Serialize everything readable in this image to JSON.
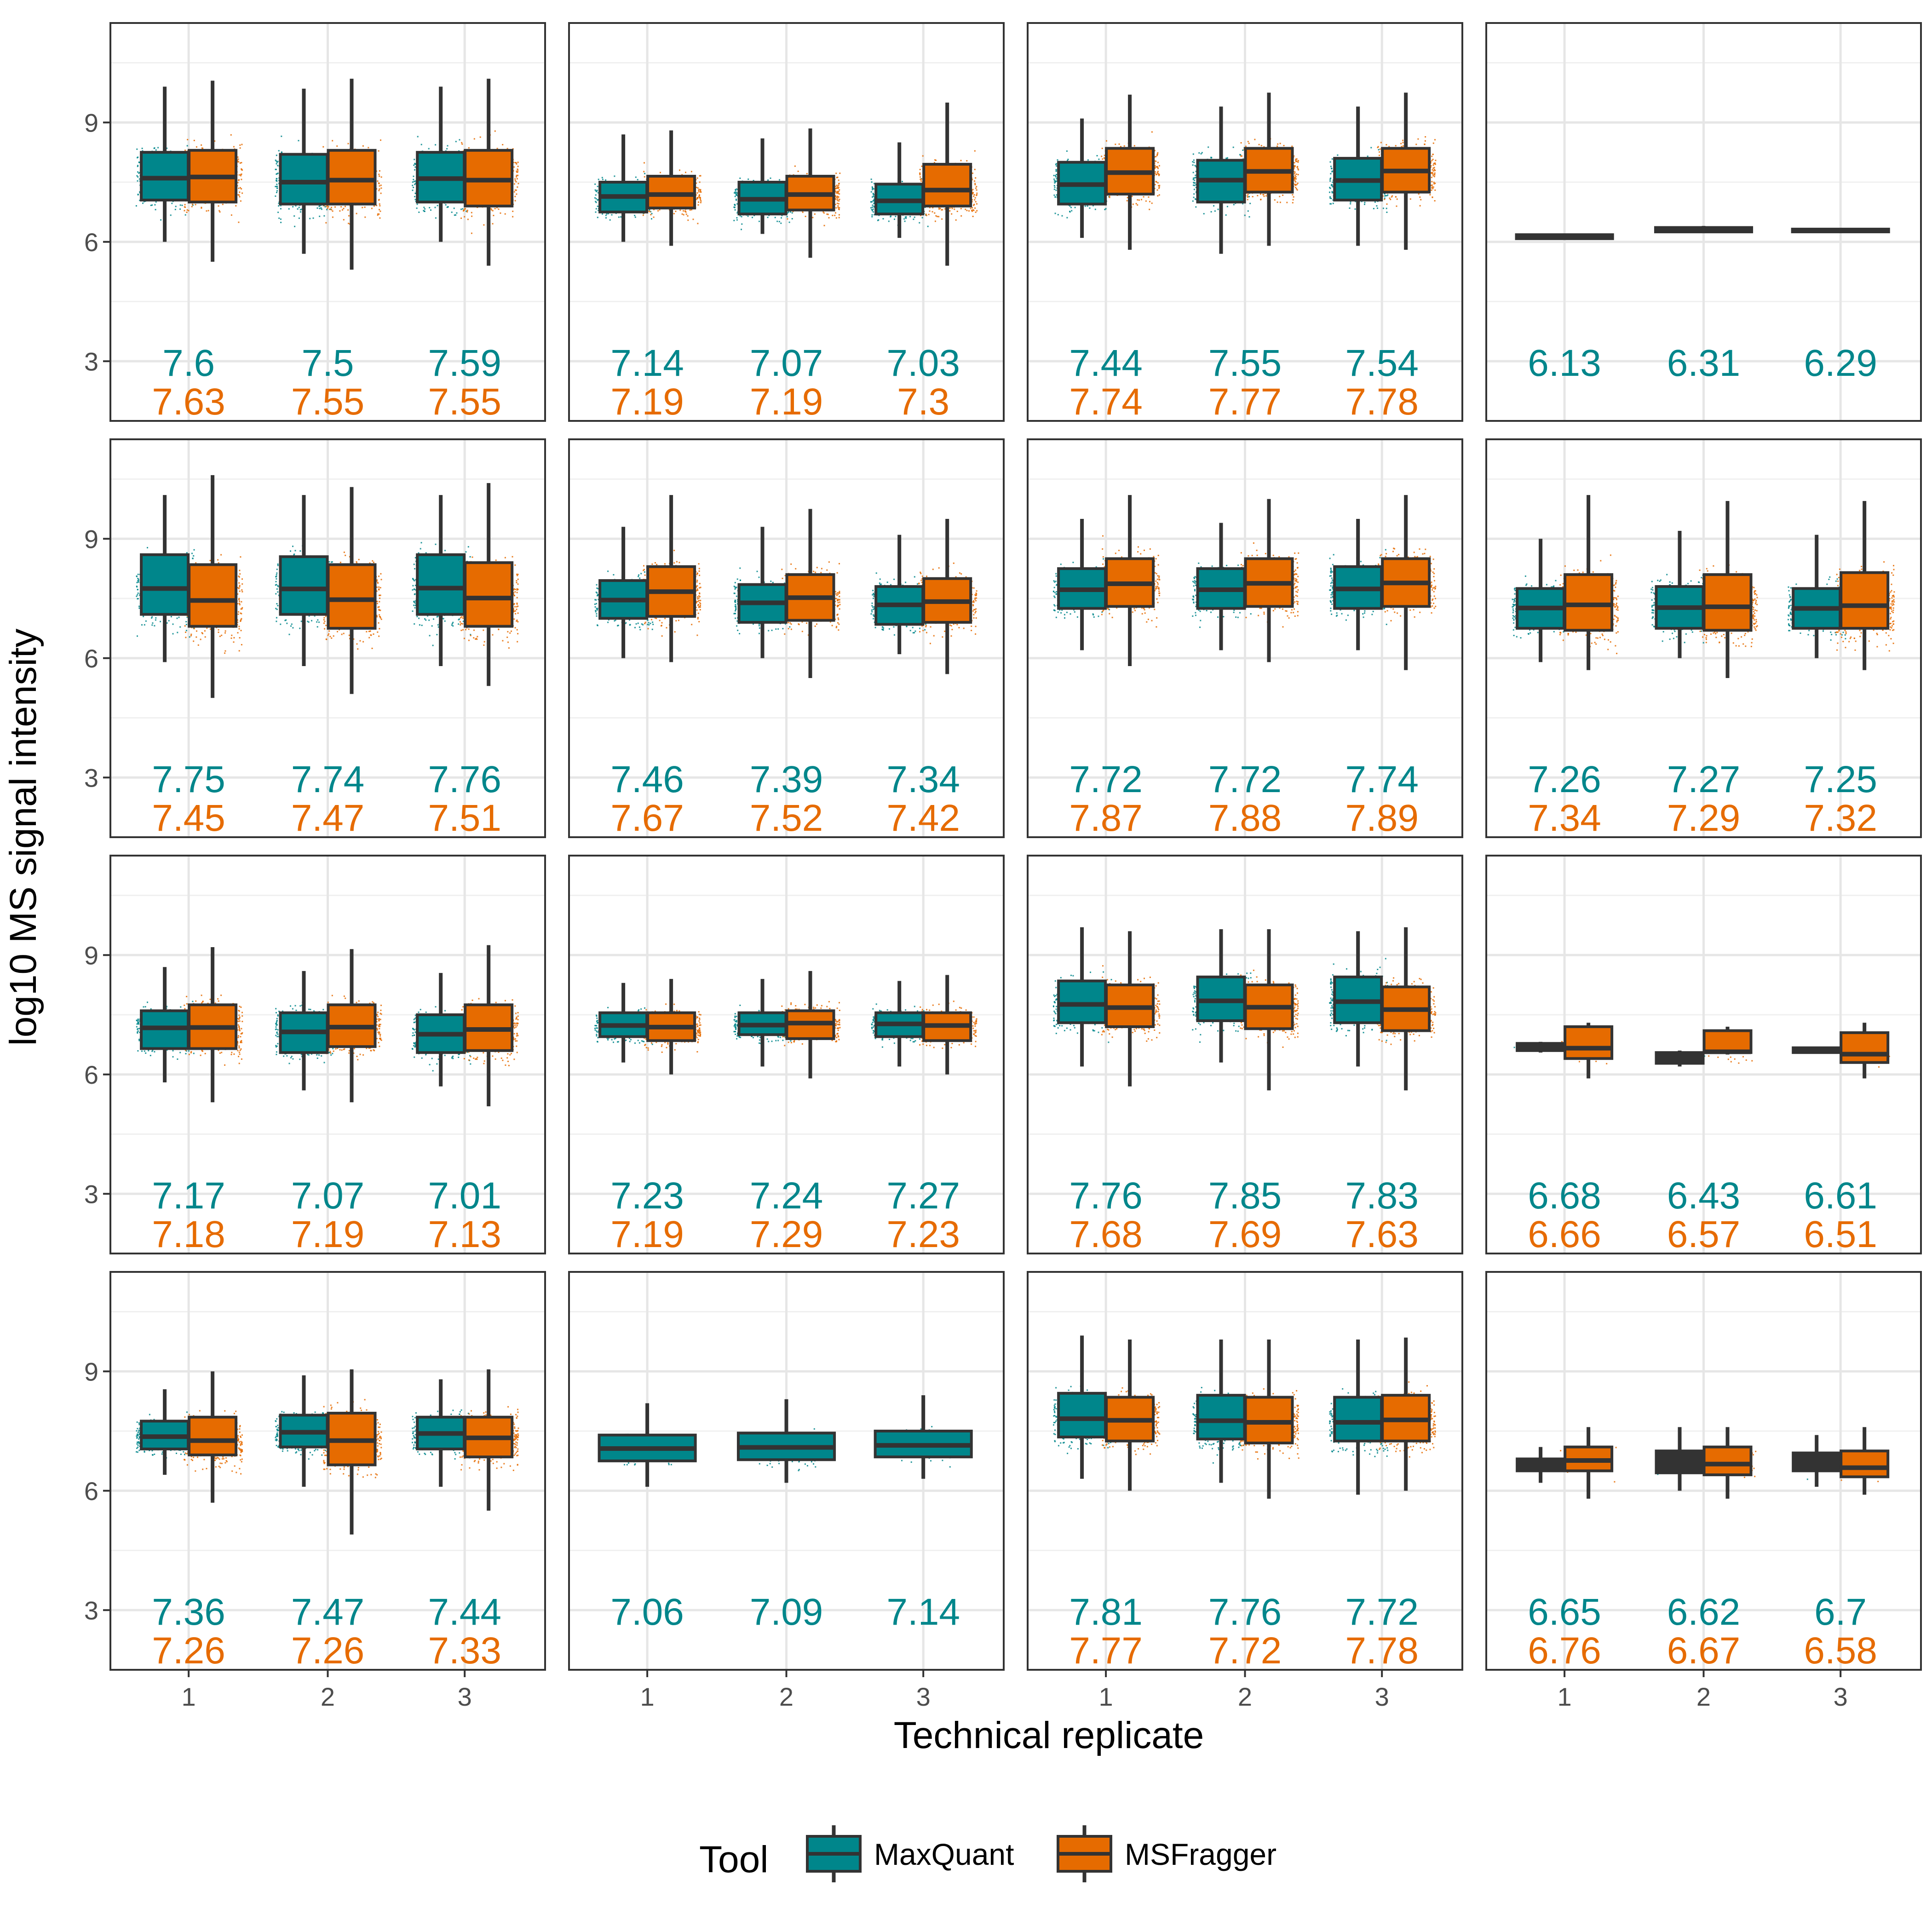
{
  "chart_data": {
    "type": "boxplot",
    "xlabel": "Technical replicate",
    "ylabel": "log10 MS signal intensity",
    "categories": [
      "1",
      "2",
      "3"
    ],
    "ylim": [
      1.5,
      11.5
    ],
    "yticks": [
      3,
      6,
      9
    ],
    "grid": true,
    "legend": {
      "title": "Tool",
      "placement": "bottom",
      "items": [
        {
          "name": "MaxQuant",
          "color": "#00868B"
        },
        {
          "name": "MSFragger",
          "color": "#E66B00"
        }
      ]
    },
    "series_colors": {
      "MaxQuant": "#00868B",
      "MSFragger": "#E66B00"
    },
    "panels": [
      {
        "mq": [
          {
            "min": 6.0,
            "q1": 7.05,
            "med": 7.6,
            "q3": 8.25,
            "max": 9.9
          },
          {
            "min": 5.7,
            "q1": 6.95,
            "med": 7.5,
            "q3": 8.2,
            "max": 9.85
          },
          {
            "min": 6.0,
            "q1": 7.0,
            "med": 7.59,
            "q3": 8.25,
            "max": 9.9
          }
        ],
        "msf": [
          {
            "min": 5.5,
            "q1": 7.0,
            "med": 7.63,
            "q3": 8.3,
            "max": 10.05
          },
          {
            "min": 5.3,
            "q1": 6.95,
            "med": 7.55,
            "q3": 8.3,
            "max": 10.1
          },
          {
            "min": 5.4,
            "q1": 6.9,
            "med": 7.55,
            "q3": 8.3,
            "max": 10.1
          }
        ],
        "mq_labels": [
          "7.6",
          "7.5",
          "7.59"
        ],
        "msf_labels": [
          "7.63",
          "7.55",
          "7.55"
        ],
        "mq_only_box": false
      },
      {
        "mq": [
          {
            "min": 6.0,
            "q1": 6.75,
            "med": 7.14,
            "q3": 7.5,
            "max": 8.7
          },
          {
            "min": 6.2,
            "q1": 6.7,
            "med": 7.07,
            "q3": 7.5,
            "max": 8.6
          },
          {
            "min": 6.1,
            "q1": 6.7,
            "med": 7.03,
            "q3": 7.45,
            "max": 8.5
          }
        ],
        "msf": [
          {
            "min": 5.9,
            "q1": 6.85,
            "med": 7.19,
            "q3": 7.65,
            "max": 8.8
          },
          {
            "min": 5.6,
            "q1": 6.8,
            "med": 7.19,
            "q3": 7.65,
            "max": 8.85
          },
          {
            "min": 5.4,
            "q1": 6.9,
            "med": 7.3,
            "q3": 7.95,
            "max": 9.5
          }
        ],
        "mq_labels": [
          "7.14",
          "7.07",
          "7.03"
        ],
        "msf_labels": [
          "7.19",
          "7.19",
          "7.3"
        ],
        "mq_only_box": false
      },
      {
        "mq": [
          {
            "min": 6.1,
            "q1": 6.95,
            "med": 7.44,
            "q3": 8.0,
            "max": 9.1
          },
          {
            "min": 5.7,
            "q1": 7.0,
            "med": 7.55,
            "q3": 8.05,
            "max": 9.4
          },
          {
            "min": 5.9,
            "q1": 7.05,
            "med": 7.54,
            "q3": 8.1,
            "max": 9.4
          }
        ],
        "msf": [
          {
            "min": 5.8,
            "q1": 7.2,
            "med": 7.74,
            "q3": 8.35,
            "max": 9.7
          },
          {
            "min": 5.9,
            "q1": 7.25,
            "med": 7.77,
            "q3": 8.35,
            "max": 9.75
          },
          {
            "min": 5.8,
            "q1": 7.25,
            "med": 7.78,
            "q3": 8.35,
            "max": 9.75
          }
        ],
        "mq_labels": [
          "7.44",
          "7.55",
          "7.54"
        ],
        "msf_labels": [
          "7.74",
          "7.77",
          "7.78"
        ],
        "mq_only_box": false
      },
      {
        "mq": [
          {
            "min": 6.05,
            "q1": 6.08,
            "med": 6.13,
            "q3": 6.18,
            "max": 6.2
          },
          {
            "min": 6.22,
            "q1": 6.25,
            "med": 6.31,
            "q3": 6.36,
            "max": 6.4
          },
          {
            "min": 6.24,
            "q1": 6.26,
            "med": 6.29,
            "q3": 6.32,
            "max": 6.34
          }
        ],
        "msf": [],
        "mq_labels": [
          "6.13",
          "6.31",
          "6.29"
        ],
        "msf_labels": [],
        "mq_only_box": true,
        "dark_box": true
      },
      {
        "mq": [
          {
            "min": 5.9,
            "q1": 7.1,
            "med": 7.75,
            "q3": 8.6,
            "max": 10.1
          },
          {
            "min": 5.8,
            "q1": 7.1,
            "med": 7.74,
            "q3": 8.55,
            "max": 10.1
          },
          {
            "min": 5.8,
            "q1": 7.1,
            "med": 7.76,
            "q3": 8.6,
            "max": 10.1
          }
        ],
        "msf": [
          {
            "min": 5.0,
            "q1": 6.8,
            "med": 7.45,
            "q3": 8.35,
            "max": 10.6
          },
          {
            "min": 5.1,
            "q1": 6.75,
            "med": 7.47,
            "q3": 8.35,
            "max": 10.3
          },
          {
            "min": 5.3,
            "q1": 6.8,
            "med": 7.51,
            "q3": 8.4,
            "max": 10.4
          }
        ],
        "mq_labels": [
          "7.75",
          "7.74",
          "7.76"
        ],
        "msf_labels": [
          "7.45",
          "7.47",
          "7.51"
        ],
        "mq_only_box": false
      },
      {
        "mq": [
          {
            "min": 6.0,
            "q1": 7.0,
            "med": 7.46,
            "q3": 7.95,
            "max": 9.3
          },
          {
            "min": 6.0,
            "q1": 6.9,
            "med": 7.39,
            "q3": 7.85,
            "max": 9.3
          },
          {
            "min": 6.1,
            "q1": 6.85,
            "med": 7.34,
            "q3": 7.8,
            "max": 9.1
          }
        ],
        "msf": [
          {
            "min": 5.9,
            "q1": 7.05,
            "med": 7.67,
            "q3": 8.3,
            "max": 10.1
          },
          {
            "min": 5.5,
            "q1": 6.95,
            "med": 7.52,
            "q3": 8.1,
            "max": 9.75
          },
          {
            "min": 5.6,
            "q1": 6.9,
            "med": 7.42,
            "q3": 8.0,
            "max": 9.5
          }
        ],
        "mq_labels": [
          "7.46",
          "7.39",
          "7.34"
        ],
        "msf_labels": [
          "7.67",
          "7.52",
          "7.42"
        ],
        "mq_only_box": false
      },
      {
        "mq": [
          {
            "min": 6.2,
            "q1": 7.25,
            "med": 7.72,
            "q3": 8.25,
            "max": 9.5
          },
          {
            "min": 6.2,
            "q1": 7.25,
            "med": 7.72,
            "q3": 8.25,
            "max": 9.4
          },
          {
            "min": 6.2,
            "q1": 7.25,
            "med": 7.74,
            "q3": 8.3,
            "max": 9.5
          }
        ],
        "msf": [
          {
            "min": 5.8,
            "q1": 7.3,
            "med": 7.87,
            "q3": 8.5,
            "max": 10.1
          },
          {
            "min": 5.9,
            "q1": 7.3,
            "med": 7.88,
            "q3": 8.5,
            "max": 10.0
          },
          {
            "min": 5.7,
            "q1": 7.3,
            "med": 7.89,
            "q3": 8.5,
            "max": 10.1
          }
        ],
        "mq_labels": [
          "7.72",
          "7.72",
          "7.74"
        ],
        "msf_labels": [
          "7.87",
          "7.88",
          "7.89"
        ],
        "mq_only_box": false
      },
      {
        "mq": [
          {
            "min": 5.9,
            "q1": 6.75,
            "med": 7.26,
            "q3": 7.75,
            "max": 9.0
          },
          {
            "min": 6.0,
            "q1": 6.75,
            "med": 7.27,
            "q3": 7.8,
            "max": 9.2
          },
          {
            "min": 6.0,
            "q1": 6.75,
            "med": 7.25,
            "q3": 7.75,
            "max": 9.1
          }
        ],
        "msf": [
          {
            "min": 5.7,
            "q1": 6.7,
            "med": 7.34,
            "q3": 8.1,
            "max": 10.1
          },
          {
            "min": 5.5,
            "q1": 6.7,
            "med": 7.29,
            "q3": 8.1,
            "max": 9.95
          },
          {
            "min": 5.7,
            "q1": 6.75,
            "med": 7.32,
            "q3": 8.15,
            "max": 9.95
          }
        ],
        "mq_labels": [
          "7.26",
          "7.27",
          "7.25"
        ],
        "msf_labels": [
          "7.34",
          "7.29",
          "7.32"
        ],
        "mq_only_box": false
      },
      {
        "mq": [
          {
            "min": 5.8,
            "q1": 6.65,
            "med": 7.17,
            "q3": 7.6,
            "max": 8.7
          },
          {
            "min": 5.6,
            "q1": 6.55,
            "med": 7.07,
            "q3": 7.55,
            "max": 8.6
          },
          {
            "min": 5.7,
            "q1": 6.55,
            "med": 7.01,
            "q3": 7.5,
            "max": 8.55
          }
        ],
        "msf": [
          {
            "min": 5.3,
            "q1": 6.65,
            "med": 7.18,
            "q3": 7.75,
            "max": 9.2
          },
          {
            "min": 5.3,
            "q1": 6.7,
            "med": 7.19,
            "q3": 7.75,
            "max": 9.15
          },
          {
            "min": 5.2,
            "q1": 6.6,
            "med": 7.13,
            "q3": 7.75,
            "max": 9.25
          }
        ],
        "mq_labels": [
          "7.17",
          "7.07",
          "7.01"
        ],
        "msf_labels": [
          "7.18",
          "7.19",
          "7.13"
        ],
        "mq_only_box": false
      },
      {
        "mq": [
          {
            "min": 6.3,
            "q1": 6.95,
            "med": 7.23,
            "q3": 7.55,
            "max": 8.3
          },
          {
            "min": 6.2,
            "q1": 7.0,
            "med": 7.24,
            "q3": 7.55,
            "max": 8.4
          },
          {
            "min": 6.2,
            "q1": 6.95,
            "med": 7.27,
            "q3": 7.55,
            "max": 8.35
          }
        ],
        "msf": [
          {
            "min": 6.0,
            "q1": 6.85,
            "med": 7.19,
            "q3": 7.55,
            "max": 8.4
          },
          {
            "min": 5.9,
            "q1": 6.9,
            "med": 7.29,
            "q3": 7.6,
            "max": 8.6
          },
          {
            "min": 6.0,
            "q1": 6.85,
            "med": 7.23,
            "q3": 7.55,
            "max": 8.5
          }
        ],
        "mq_labels": [
          "7.23",
          "7.24",
          "7.27"
        ],
        "msf_labels": [
          "7.19",
          "7.29",
          "7.23"
        ],
        "mq_only_box": false
      },
      {
        "mq": [
          {
            "min": 6.2,
            "q1": 7.3,
            "med": 7.76,
            "q3": 8.35,
            "max": 9.7
          },
          {
            "min": 6.3,
            "q1": 7.35,
            "med": 7.85,
            "q3": 8.45,
            "max": 9.65
          },
          {
            "min": 6.2,
            "q1": 7.3,
            "med": 7.83,
            "q3": 8.45,
            "max": 9.6
          }
        ],
        "msf": [
          {
            "min": 5.7,
            "q1": 7.2,
            "med": 7.68,
            "q3": 8.25,
            "max": 9.6
          },
          {
            "min": 5.6,
            "q1": 7.15,
            "med": 7.69,
            "q3": 8.25,
            "max": 9.65
          },
          {
            "min": 5.6,
            "q1": 7.1,
            "med": 7.63,
            "q3": 8.2,
            "max": 9.7
          }
        ],
        "mq_labels": [
          "7.76",
          "7.85",
          "7.83"
        ],
        "msf_labels": [
          "7.68",
          "7.69",
          "7.63"
        ],
        "mq_only_box": false
      },
      {
        "mq": [
          {
            "min": 6.55,
            "q1": 6.6,
            "med": 6.68,
            "q3": 6.78,
            "max": 6.82
          },
          {
            "min": 6.2,
            "q1": 6.28,
            "med": 6.43,
            "q3": 6.55,
            "max": 6.6
          },
          {
            "min": 6.52,
            "q1": 6.55,
            "med": 6.61,
            "q3": 6.67,
            "max": 6.7
          }
        ],
        "msf": [
          {
            "min": 5.9,
            "q1": 6.4,
            "med": 6.66,
            "q3": 7.2,
            "max": 7.3
          },
          {
            "min": 6.5,
            "q1": 6.55,
            "med": 6.57,
            "q3": 7.1,
            "max": 7.2
          },
          {
            "min": 5.9,
            "q1": 6.3,
            "med": 6.51,
            "q3": 7.05,
            "max": 7.3
          }
        ],
        "mq_labels": [
          "6.68",
          "6.43",
          "6.61"
        ],
        "msf_labels": [
          "6.66",
          "6.57",
          "6.51"
        ],
        "mq_only_box": false,
        "dark_mq": true
      },
      {
        "mq": [
          {
            "min": 6.4,
            "q1": 7.05,
            "med": 7.36,
            "q3": 7.75,
            "max": 8.55
          },
          {
            "min": 6.1,
            "q1": 7.1,
            "med": 7.47,
            "q3": 7.9,
            "max": 8.9
          },
          {
            "min": 6.1,
            "q1": 7.05,
            "med": 7.44,
            "q3": 7.85,
            "max": 8.8
          }
        ],
        "msf": [
          {
            "min": 5.7,
            "q1": 6.9,
            "med": 7.26,
            "q3": 7.85,
            "max": 9.0
          },
          {
            "min": 4.9,
            "q1": 6.65,
            "med": 7.26,
            "q3": 7.95,
            "max": 9.05
          },
          {
            "min": 5.5,
            "q1": 6.85,
            "med": 7.33,
            "q3": 7.85,
            "max": 9.05
          }
        ],
        "mq_labels": [
          "7.36",
          "7.47",
          "7.44"
        ],
        "msf_labels": [
          "7.26",
          "7.26",
          "7.33"
        ],
        "mq_only_box": false
      },
      {
        "mq": [
          {
            "min": 6.1,
            "q1": 6.75,
            "med": 7.06,
            "q3": 7.4,
            "max": 8.2
          },
          {
            "min": 6.2,
            "q1": 6.78,
            "med": 7.09,
            "q3": 7.45,
            "max": 8.3
          },
          {
            "min": 6.3,
            "q1": 6.85,
            "med": 7.14,
            "q3": 7.5,
            "max": 8.4
          }
        ],
        "msf": [],
        "mq_labels": [
          "7.06",
          "7.09",
          "7.14"
        ],
        "msf_labels": [],
        "mq_only_box": true
      },
      {
        "mq": [
          {
            "min": 6.3,
            "q1": 7.35,
            "med": 7.81,
            "q3": 8.45,
            "max": 9.9
          },
          {
            "min": 6.2,
            "q1": 7.3,
            "med": 7.76,
            "q3": 8.4,
            "max": 9.8
          },
          {
            "min": 5.9,
            "q1": 7.25,
            "med": 7.72,
            "q3": 8.35,
            "max": 9.8
          }
        ],
        "msf": [
          {
            "min": 6.0,
            "q1": 7.25,
            "med": 7.77,
            "q3": 8.35,
            "max": 9.8
          },
          {
            "min": 5.8,
            "q1": 7.2,
            "med": 7.72,
            "q3": 8.35,
            "max": 9.8
          },
          {
            "min": 6.0,
            "q1": 7.25,
            "med": 7.78,
            "q3": 8.4,
            "max": 9.85
          }
        ],
        "mq_labels": [
          "7.81",
          "7.76",
          "7.72"
        ],
        "msf_labels": [
          "7.77",
          "7.72",
          "7.78"
        ],
        "mq_only_box": false
      },
      {
        "mq": [
          {
            "min": 6.2,
            "q1": 6.5,
            "med": 6.65,
            "q3": 6.8,
            "max": 7.1
          },
          {
            "min": 6.0,
            "q1": 6.45,
            "med": 6.62,
            "q3": 7.0,
            "max": 7.6
          },
          {
            "min": 6.1,
            "q1": 6.5,
            "med": 6.7,
            "q3": 6.95,
            "max": 7.4
          }
        ],
        "msf": [
          {
            "min": 5.8,
            "q1": 6.5,
            "med": 6.76,
            "q3": 7.1,
            "max": 7.6
          },
          {
            "min": 5.8,
            "q1": 6.4,
            "med": 6.67,
            "q3": 7.1,
            "max": 7.6
          },
          {
            "min": 5.9,
            "q1": 6.35,
            "med": 6.58,
            "q3": 7.0,
            "max": 7.6
          }
        ],
        "mq_labels": [
          "6.65",
          "6.62",
          "6.7"
        ],
        "msf_labels": [
          "6.76",
          "6.67",
          "6.58"
        ],
        "mq_only_box": false,
        "dark_mq": true
      }
    ]
  }
}
